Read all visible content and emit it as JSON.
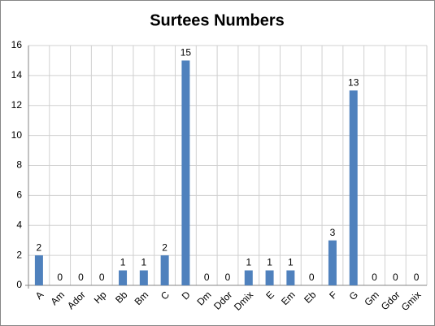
{
  "chart_data": {
    "type": "bar",
    "title": "Surtees Numbers",
    "categories": [
      "A",
      "Am",
      "Ador",
      "Hp",
      "Bb",
      "Bm",
      "C",
      "D",
      "Dm",
      "Ddor",
      "Dmix",
      "E",
      "Em",
      "Eb",
      "F",
      "G",
      "Gm",
      "Gdor",
      "Gmix"
    ],
    "values": [
      2,
      0,
      0,
      0,
      1,
      1,
      2,
      15,
      0,
      0,
      1,
      1,
      1,
      0,
      3,
      13,
      0,
      0,
      0
    ],
    "color": "#4f81bd",
    "ylim": [
      0,
      16
    ],
    "yticks": [
      0,
      2,
      4,
      6,
      8,
      10,
      12,
      14,
      16
    ],
    "grid": true
  }
}
